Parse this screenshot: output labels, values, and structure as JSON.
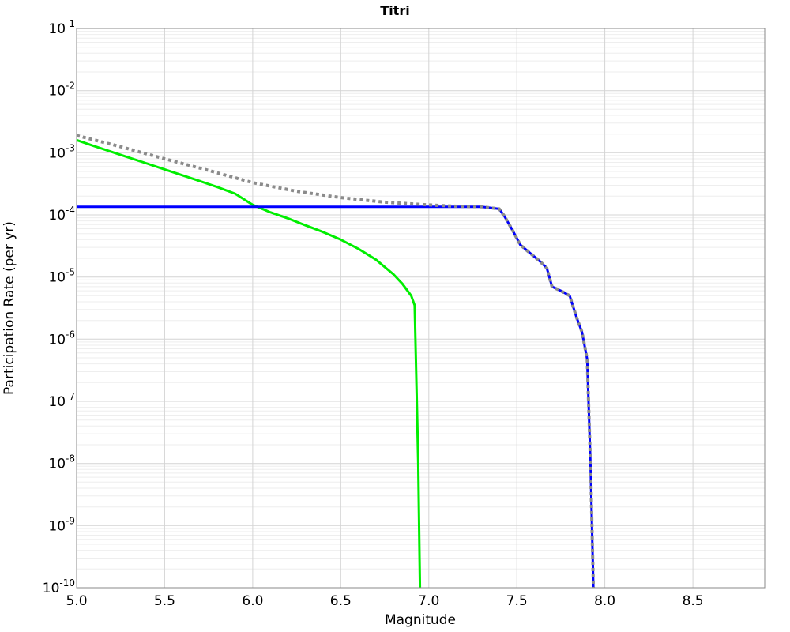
{
  "page": {
    "background": "#ffffff"
  },
  "chart_data": {
    "type": "line",
    "title": "Titri",
    "xlabel": "Magnitude",
    "ylabel": "Participation Rate (per yr)",
    "grid": {
      "show_minor": true,
      "minor_color": "#eeeeee",
      "major_color": "#d4d4d4",
      "frame_color": "#888888",
      "legend": "none"
    },
    "x_axis": {
      "scale": "linear",
      "min": 5.0,
      "max": 8.908,
      "ticks": [
        5.0,
        5.5,
        6.0,
        6.5,
        7.0,
        7.5,
        8.0,
        8.5
      ],
      "tick_labels": [
        "5.0",
        "5.5",
        "6.0",
        "6.5",
        "7.0",
        "7.5",
        "8.0",
        "8.5"
      ]
    },
    "y_axis": {
      "scale": "log",
      "min": 1e-10,
      "max": 0.1,
      "tick_base": "10",
      "tick_exponents": [
        "-1",
        "-2",
        "-3",
        "-4",
        "-5",
        "-6",
        "-7",
        "-8",
        "-9",
        "-10"
      ]
    },
    "series": [
      {
        "name": "green-solid",
        "style": "solid",
        "color": "#00EE00",
        "width": 3,
        "points": [
          [
            5.0,
            0.0016
          ],
          [
            5.1,
            0.00128
          ],
          [
            5.2,
            0.00103
          ],
          [
            5.3,
            0.00083
          ],
          [
            5.4,
            0.00067
          ],
          [
            5.5,
            0.00054
          ],
          [
            5.6,
            0.000435
          ],
          [
            5.7,
            0.00035
          ],
          [
            5.8,
            0.00028
          ],
          [
            5.9,
            0.00022
          ],
          [
            6.0,
            0.000145
          ],
          [
            6.1,
            0.00011
          ],
          [
            6.2,
            8.8e-05
          ],
          [
            6.3,
            6.8e-05
          ],
          [
            6.4,
            5.3e-05
          ],
          [
            6.5,
            4e-05
          ],
          [
            6.6,
            2.85e-05
          ],
          [
            6.7,
            1.9e-05
          ],
          [
            6.8,
            1.1e-05
          ],
          [
            6.85,
            7.8e-06
          ],
          [
            6.9,
            5e-06
          ],
          [
            6.92,
            3.5e-06
          ],
          [
            6.94,
            1e-08
          ],
          [
            6.95,
            1e-10
          ]
        ]
      },
      {
        "name": "blue-solid",
        "style": "solid",
        "color": "#0000FF",
        "width": 3,
        "points": [
          [
            5.0,
            0.000135
          ],
          [
            7.3,
            0.000135
          ],
          [
            7.4,
            0.000125
          ],
          [
            7.43,
            9.5e-05
          ],
          [
            7.48,
            5.4e-05
          ],
          [
            7.52,
            3.3e-05
          ],
          [
            7.57,
            2.5e-05
          ],
          [
            7.63,
            1.8e-05
          ],
          [
            7.67,
            1.4e-05
          ],
          [
            7.7,
            7e-06
          ],
          [
            7.75,
            6e-06
          ],
          [
            7.8,
            5e-06
          ],
          [
            7.84,
            2.2e-06
          ],
          [
            7.87,
            1.3e-06
          ],
          [
            7.9,
            4.7e-07
          ],
          [
            7.92,
            7e-09
          ],
          [
            7.935,
            1e-10
          ]
        ]
      },
      {
        "name": "gray-dotted",
        "style": "dotted",
        "color": "#8B8B8B",
        "width": 4,
        "dash": "4 4",
        "points": [
          [
            5.0,
            0.0019
          ],
          [
            5.25,
            0.00125
          ],
          [
            5.5,
            0.0008
          ],
          [
            5.75,
            0.00052
          ],
          [
            6.0,
            0.00033
          ],
          [
            6.25,
            0.00024
          ],
          [
            6.5,
            0.00019
          ],
          [
            6.75,
            0.00016
          ],
          [
            7.0,
            0.000145
          ],
          [
            7.1,
            0.00014
          ],
          [
            7.2,
            0.000137
          ],
          [
            7.3,
            0.000135
          ],
          [
            7.4,
            0.000125
          ],
          [
            7.43,
            9.5e-05
          ],
          [
            7.48,
            5.4e-05
          ],
          [
            7.52,
            3.3e-05
          ],
          [
            7.57,
            2.5e-05
          ],
          [
            7.63,
            1.8e-05
          ],
          [
            7.67,
            1.4e-05
          ],
          [
            7.7,
            7e-06
          ],
          [
            7.75,
            6e-06
          ],
          [
            7.8,
            5e-06
          ],
          [
            7.84,
            2.2e-06
          ],
          [
            7.87,
            1.3e-06
          ],
          [
            7.9,
            4.7e-07
          ],
          [
            7.92,
            7e-09
          ],
          [
            7.935,
            1e-10
          ]
        ]
      }
    ]
  }
}
